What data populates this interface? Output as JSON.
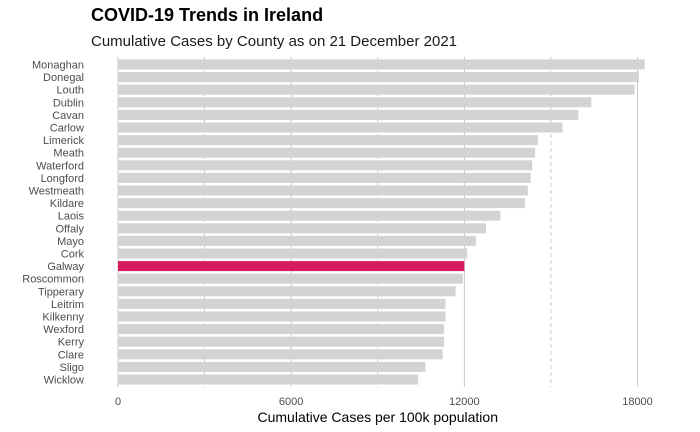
{
  "chart_data": {
    "type": "bar",
    "orientation": "horizontal",
    "title": "COVID-19 Trends in Ireland",
    "subtitle": "Cumulative Cases by County as on 21 December 2021",
    "xlabel": "Cumulative Cases per 100k population",
    "ylabel": "",
    "xlim": [
      0,
      18300
    ],
    "xticks": [
      0,
      6000,
      12000,
      18000
    ],
    "minor_gridlines": [
      3000,
      9000,
      15000
    ],
    "grid": true,
    "categories": [
      "Monaghan",
      "Donegal",
      "Louth",
      "Dublin",
      "Cavan",
      "Carlow",
      "Limerick",
      "Meath",
      "Waterford",
      "Longford",
      "Westmeath",
      "Kildare",
      "Laois",
      "Offaly",
      "Mayo",
      "Cork",
      "Galway",
      "Roscommon",
      "Tipperary",
      "Leitrim",
      "Kilkenny",
      "Wexford",
      "Kerry",
      "Clare",
      "Sligo",
      "Wicklow"
    ],
    "values": [
      18250,
      18050,
      17900,
      16400,
      15950,
      15400,
      14550,
      14450,
      14350,
      14300,
      14200,
      14100,
      13250,
      12750,
      12400,
      12100,
      12000,
      11950,
      11700,
      11350,
      11350,
      11300,
      11300,
      11250,
      10650,
      10400
    ],
    "highlight": "Galway",
    "colors": {
      "bar": "#d3d3d3",
      "highlight": "#d81b60",
      "grid_major": "#bdbdbd",
      "grid_minor": "#bdbdbd"
    }
  }
}
